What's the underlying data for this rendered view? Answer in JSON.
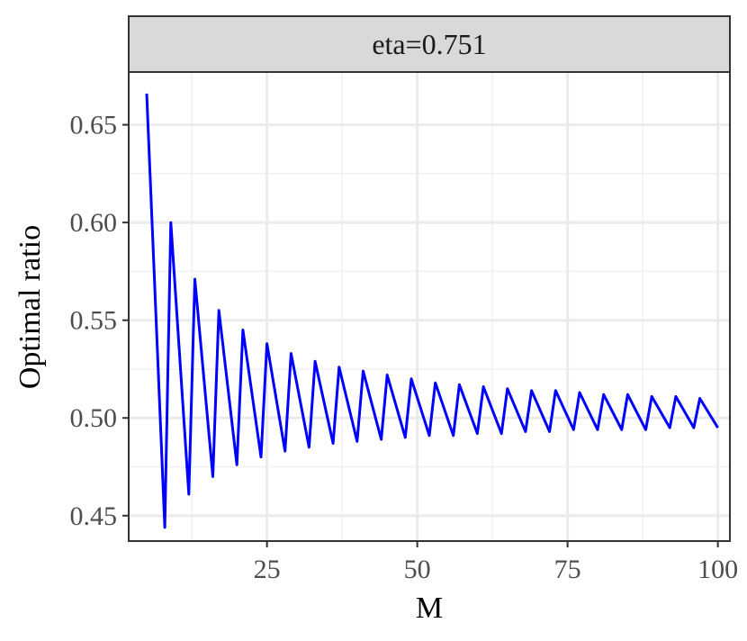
{
  "chart_data": {
    "type": "line",
    "facet_label": "eta=0.751",
    "xlabel": "M",
    "ylabel": "Optimal ratio",
    "xlim": [
      2,
      102
    ],
    "ylim": [
      0.437,
      0.677
    ],
    "x_ticks": [
      {
        "value": 25,
        "label": "25"
      },
      {
        "value": 50,
        "label": "50"
      },
      {
        "value": 75,
        "label": "75"
      },
      {
        "value": 100,
        "label": "100"
      }
    ],
    "y_ticks": [
      {
        "value": 0.45,
        "label": "0.45"
      },
      {
        "value": 0.5,
        "label": "0.50"
      },
      {
        "value": 0.55,
        "label": "0.55"
      },
      {
        "value": 0.6,
        "label": "0.60"
      },
      {
        "value": 0.65,
        "label": "0.65"
      }
    ],
    "x_minor": [
      12.5,
      37.5,
      62.5,
      87.5
    ],
    "y_minor": [
      0.475,
      0.525,
      0.575,
      0.625
    ],
    "grid": true,
    "series": [
      {
        "color": "#0000ff",
        "x": [
          5,
          8,
          9,
          12,
          13,
          16,
          17,
          20,
          21,
          24,
          25,
          28,
          29,
          32,
          33,
          36,
          37,
          40,
          41,
          44,
          45,
          48,
          49,
          52,
          53,
          56,
          57,
          60,
          61,
          64,
          65,
          68,
          69,
          72,
          73,
          76,
          77,
          80,
          81,
          84,
          85,
          88,
          89,
          92,
          93,
          96,
          97,
          100
        ],
        "y": [
          0.666,
          0.444,
          0.6,
          0.461,
          0.571,
          0.47,
          0.555,
          0.476,
          0.545,
          0.48,
          0.538,
          0.483,
          0.533,
          0.485,
          0.529,
          0.487,
          0.526,
          0.488,
          0.524,
          0.489,
          0.522,
          0.49,
          0.52,
          0.491,
          0.518,
          0.491,
          0.517,
          0.492,
          0.516,
          0.492,
          0.515,
          0.493,
          0.514,
          0.493,
          0.514,
          0.494,
          0.513,
          0.494,
          0.512,
          0.494,
          0.512,
          0.494,
          0.511,
          0.495,
          0.511,
          0.495,
          0.51,
          0.495
        ]
      }
    ]
  }
}
